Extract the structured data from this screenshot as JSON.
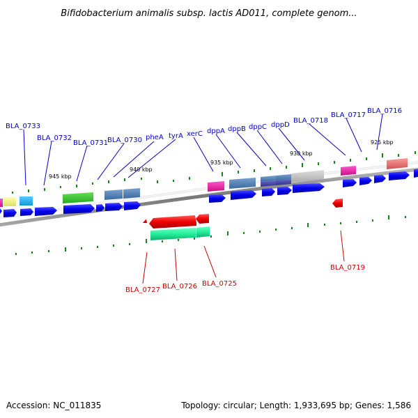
{
  "title": "Bifidobacterium animalis subsp. lactis AD011, complete genom...",
  "footer": {
    "accession": "Accession: NC_011835",
    "summary": "Topology: circular; Length: 1,933,695 bp; Genes: 1,586"
  },
  "kbp_labels": [
    "945 kbp",
    "940 kbp",
    "935 kbp",
    "930 kbp",
    "925 kbp"
  ],
  "forward_labels": [
    "BLA_0733",
    "BLA_0732",
    "BLA_0731",
    "BLA_0730",
    "pheA",
    "tyrA",
    "xerC",
    "dppA",
    "dppB",
    "dppC",
    "dppD",
    "BLA_0718",
    "BLA_0717",
    "BLA_0716"
  ],
  "reverse_labels": [
    "BLA_0727",
    "BLA_0726",
    "BLA_0725",
    "BLA_0719"
  ],
  "colors": {
    "forward": "#0000ee",
    "reverse": "#ee0000",
    "backbone": "#888888",
    "ticks": "#118811"
  }
}
